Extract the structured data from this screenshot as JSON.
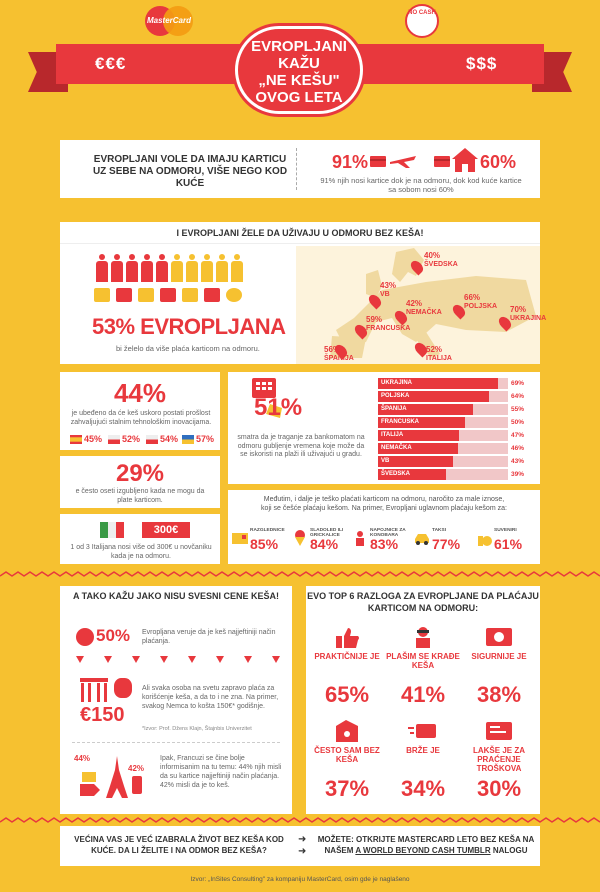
{
  "header": {
    "mastercard_logo": "MasterCard",
    "nocash_logo": "NO CASH",
    "ribbon_left": "€€€",
    "ribbon_right": "$$$",
    "title_lines": [
      "EVROPLJANI KAŽU",
      "„NE KEŠU\"",
      "OVOG LETA"
    ]
  },
  "intro": {
    "text": "EVROPLJANI VOLE DA IMAJU KARTICU UZ SEBE NA ODMORU, VIŠE NEGO KOD KUĆE",
    "stat_vacation": "91%",
    "stat_home": "60%",
    "note": "91% njih nosi kartice dok je na odmoru, dok kod kuće kartice sa sobom nosi 60%",
    "icons": [
      "plane-card-icon",
      "house-card-icon"
    ]
  },
  "vacation": {
    "heading": "I EVROPLJANI ŽELE DA UŽIVAJU U ODMORU BEZ KEŠA!",
    "people_total": 10,
    "people_red": 5,
    "big_stat": "53% EVROPLJANA",
    "desc": "bi želelo da više plaća karticom na odmoru.",
    "map_markers": [
      {
        "pct": "40%",
        "name": "ŠVEDSKA"
      },
      {
        "pct": "43%",
        "name": "VB"
      },
      {
        "pct": "42%",
        "name": "NEMAČKA"
      },
      {
        "pct": "66%",
        "name": "POLJSKA"
      },
      {
        "pct": "70%",
        "name": "UKRAJINA"
      },
      {
        "pct": "59%",
        "name": "FRANCUSKA"
      },
      {
        "pct": "56%",
        "name": "ŠPANIJA"
      },
      {
        "pct": "52%",
        "name": "ITALIJA"
      }
    ]
  },
  "tech": {
    "big": "44%",
    "desc": "je ubeđeno da će keš uskoro postati prošlost zahvaljujući stalnim tehnološkim inovacijama.",
    "flags": [
      {
        "country": "spain",
        "pct": "45%"
      },
      {
        "country": "poland",
        "pct": "52%"
      },
      {
        "country": "poland",
        "pct": "54%"
      },
      {
        "country": "ukraine",
        "pct": "57%"
      }
    ]
  },
  "lost": {
    "big": "29%",
    "desc": "e često oseti izgubljeno kada ne mogu da plate karticom."
  },
  "italy": {
    "amount": "300€",
    "desc": "1 od 3 Italijana nosi više od 300€ u novčaniku kada je na odmoru."
  },
  "atm": {
    "big": "51%",
    "desc": "smatra da je traganje za bankomatom na odmoru gubljenje vremena koje može da se iskoristi na plaži ili uživajući u gradu.",
    "chart_data": {
      "type": "bar",
      "categories": [
        "UKRAJINA",
        "POLJSKA",
        "ŠPANIJA",
        "FRANCUSKA",
        "ITALIJA",
        "NEMAČKA",
        "VB",
        "ŠVEDSKA"
      ],
      "values": [
        69,
        64,
        55,
        50,
        47,
        46,
        43,
        39
      ],
      "labels": [
        "69%",
        "64%",
        "55%",
        "50%",
        "47%",
        "46%",
        "43%",
        "39%"
      ],
      "ylim": [
        0,
        75
      ]
    }
  },
  "small_amounts": {
    "desc": "Međutim, i dalje je teško plaćati karticom na odmoru, naročito za male iznose, koji se češće plaćaju kešom. Na primer, Evropljani uglavnom plaćaju kešom za:",
    "items": [
      {
        "label": "RAZGLEDNICE",
        "pct": "85%"
      },
      {
        "label": "SLADOLED ILI GRICKALICE",
        "pct": "84%"
      },
      {
        "label": "NAPOJNICE ZA KONOBARA",
        "pct": "83%"
      },
      {
        "label": "TAKSI",
        "pct": "77%"
      },
      {
        "label": "SUVENIRI",
        "pct": "61%"
      }
    ]
  },
  "value": {
    "heading": "A TAKO KAŽU JAKO NISU SVESNI CENE KEŠA!",
    "p50": "50%",
    "t1": "Evropljana veruje da je keš najjeftiniji način plaćanja.",
    "e150": "€150",
    "t2": "Ali svaka osoba na svetu zapravo plaća za korišćenje keša, a da to i ne zna. Na primer, svakog Nemca to košta 150€* godišnje.",
    "source": "*Izvor: Prof. Džens Klajn, Štajnbis Univerzitet",
    "p44": "44%",
    "p42": "42%",
    "t3": "Ipak, Francuzi se čine bolje informisanim na tu temu: 44% njih misli da su kartice najjeftiniji način plaćanja. 42% misli da je to keš."
  },
  "reasons": {
    "heading": "EVO TOP 6 RAZLOGA ZA EVROPLJANE DA PLAĆAJU KARTICOM NA ODMORU:",
    "items": [
      {
        "label": "PRAKTIČNIJE JE",
        "pct": "65%",
        "icon": "thumbs-up-icon"
      },
      {
        "label": "PLAŠIM SE KRAĐE KEŠA",
        "pct": "41%",
        "icon": "thief-icon"
      },
      {
        "label": "SIGURNIJE JE",
        "pct": "38%",
        "icon": "safe-card-icon"
      },
      {
        "label": "ČESTO SAM BEZ KEŠA",
        "pct": "37%",
        "icon": "empty-wallet-icon"
      },
      {
        "label": "BRŽE JE",
        "pct": "34%",
        "icon": "fast-card-icon"
      },
      {
        "label": "LAKŠE JE ZA PRAĆENJE TROŠKOVA",
        "pct": "30%",
        "icon": "receipt-icon"
      }
    ]
  },
  "footer": {
    "question": "VEĆINA VAS JE VEĆ IZABRALA ŽIVOT BEZ KEŠA KOD KUĆE. DA LI ŽELITE I NA ODMOR BEZ KEŠA?",
    "answer_pre": "MOŽETE: OTKRIJTE MASTERCARD LETO BEZ KEŠA NA NAŠEM ",
    "answer_link": "A WORLD BEYOND CASH TUMBLR",
    "answer_post": " NALOGU",
    "source": "Izvor: „InSites Consulting\" za kompaniju MasterCard, osim gde je naglašeno",
    "colors": {
      "background": "#f6c130",
      "accent": "#e8383d"
    }
  }
}
